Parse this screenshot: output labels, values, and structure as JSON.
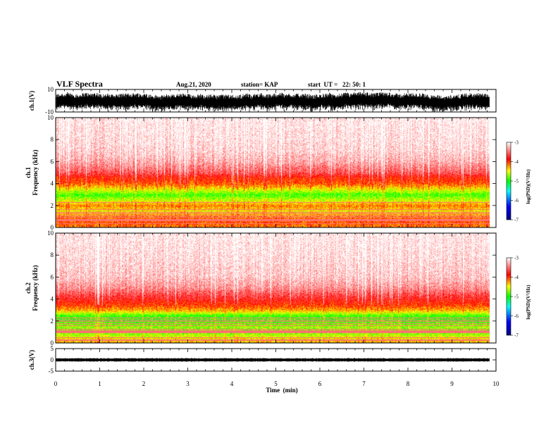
{
  "header": {
    "title": "VLF Spectra",
    "date": "Aug.21, 2020",
    "station": "station= KAP",
    "start_ut": "start  UT =   22: 50: 1"
  },
  "chart_data": [
    {
      "type": "line",
      "panel": "ch1_waveform",
      "ylabel": "ch.1(V)",
      "ylim": [
        -10,
        10
      ],
      "y_ticks": [
        "10",
        "-10"
      ],
      "x_range_min": [
        0,
        10
      ],
      "data_end_min": 9.85,
      "description": "dense noisy waveform spanning roughly -8 to 8 V"
    },
    {
      "type": "heatmap",
      "panel": "ch1_spectrogram",
      "ylabel": "ch.1\nFrequency  (kHz)",
      "ylim": [
        0,
        10
      ],
      "y_ticks": [
        "0",
        "2",
        "4",
        "6",
        "8",
        "10"
      ],
      "x_range_min": [
        0,
        10
      ],
      "data_end_min": 9.85,
      "band_profile_kHz_logpsd": [
        [
          0.0,
          -4.2
        ],
        [
          0.5,
          -4.1
        ],
        [
          1.0,
          -4.2
        ],
        [
          1.5,
          -4.5
        ],
        [
          2.0,
          -4.2
        ],
        [
          2.5,
          -4.6
        ],
        [
          3.0,
          -4.9
        ],
        [
          3.5,
          -4.5
        ],
        [
          4.0,
          -4.1
        ],
        [
          4.6,
          -3.9
        ],
        [
          5.0,
          -3.6
        ],
        [
          6.0,
          -3.3
        ],
        [
          7.0,
          -3.15
        ],
        [
          8.0,
          -3.1
        ],
        [
          10.0,
          -3.05
        ]
      ]
    },
    {
      "type": "heatmap",
      "panel": "ch2_spectrogram",
      "ylabel": "ch.2\nFrequency  (kHz)",
      "ylim": [
        0,
        10
      ],
      "y_ticks": [
        "0",
        "2",
        "4",
        "6",
        "8",
        "10"
      ],
      "x_range_min": [
        0,
        10
      ],
      "data_end_min": 9.85,
      "band_profile_kHz_logpsd": [
        [
          0.0,
          -4.3
        ],
        [
          0.5,
          -4.5
        ],
        [
          1.0,
          -4.8
        ],
        [
          1.5,
          -4.7
        ],
        [
          2.0,
          -4.9
        ],
        [
          2.5,
          -4.9
        ],
        [
          3.0,
          -4.3
        ],
        [
          3.5,
          -4.0
        ],
        [
          4.0,
          -3.8
        ],
        [
          5.0,
          -3.4
        ],
        [
          6.0,
          -3.2
        ],
        [
          8.0,
          -3.1
        ],
        [
          10.0,
          -3.05
        ]
      ]
    },
    {
      "type": "line",
      "panel": "ch3_waveform",
      "ylabel": "ch.3(V)",
      "ylim": [
        -5,
        5
      ],
      "y_ticks": [
        "5",
        "0",
        "-5"
      ],
      "x_range_min": [
        0,
        10
      ],
      "data_end_min": 9.85,
      "level_V": 0,
      "description": "flat dense trace near 0 V"
    }
  ],
  "x_axis": {
    "label": "Time  (min)",
    "ticks": [
      "0",
      "1",
      "2",
      "3",
      "4",
      "5",
      "6",
      "7",
      "8",
      "9",
      "10"
    ]
  },
  "colorbar": {
    "label": "log(PSD)(V²/Hz)",
    "range": [
      -7,
      -3
    ],
    "ticks": [
      "-3",
      "-4",
      "-5",
      "-6",
      "-7"
    ],
    "stops": [
      "#000080",
      "#0000ff",
      "#00ffff",
      "#00ff00",
      "#ffff00",
      "#ff0000",
      "#ffffff"
    ]
  }
}
